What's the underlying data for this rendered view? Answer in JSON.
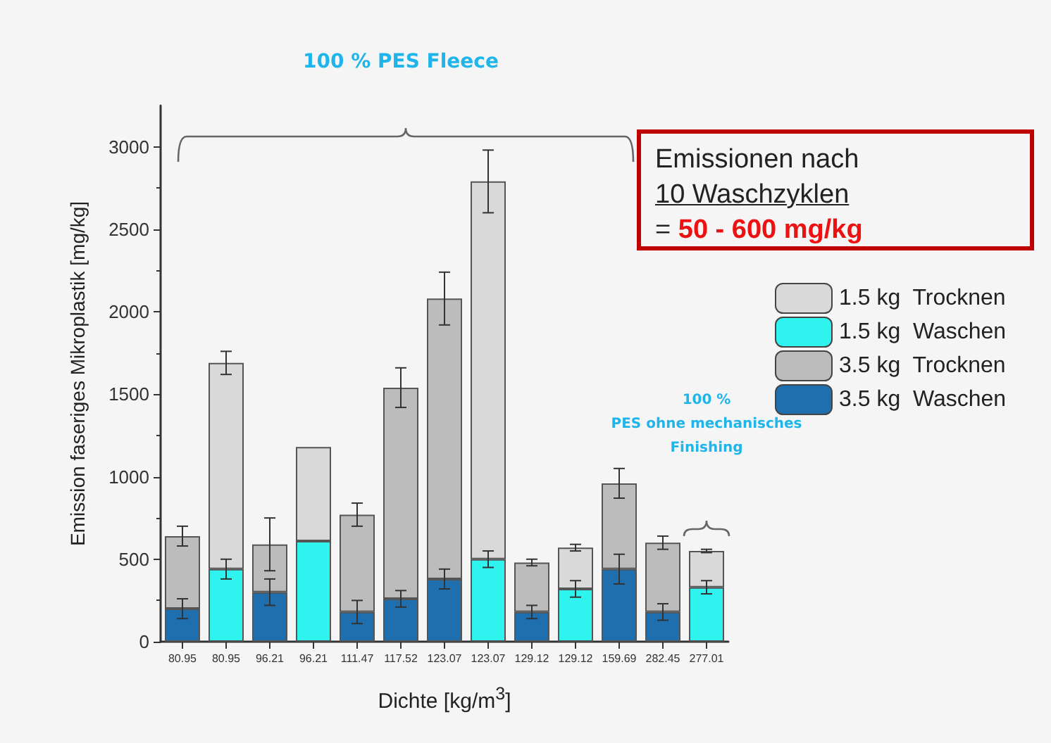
{
  "chart_data": {
    "type": "bar",
    "stacked": true,
    "xlabel": "Dichte [kg/m$^{3}$]",
    "ylabel": "Emission faseriges Mikroplastik [mg/kg]",
    "categories": [
      "80.95",
      "80.95",
      "96.21",
      "96.21",
      "111.47",
      "117.52",
      "123.07",
      "123.07",
      "129.12",
      "129.12",
      "159.69",
      "282.45",
      "277.01"
    ],
    "series": [
      {
        "name": "1.5 kg  Waschen",
        "color": "#2ef3ee",
        "values": [
          null,
          440,
          null,
          610,
          null,
          null,
          null,
          500,
          null,
          320,
          null,
          null,
          330
        ],
        "errors": [
          null,
          60,
          null,
          null,
          null,
          null,
          null,
          50,
          null,
          50,
          null,
          null,
          40
        ]
      },
      {
        "name": "3.5 kg  Waschen",
        "color": "#1f6fae",
        "values": [
          200,
          null,
          300,
          null,
          180,
          260,
          380,
          null,
          180,
          null,
          440,
          180,
          null
        ],
        "errors": [
          60,
          null,
          80,
          null,
          70,
          50,
          60,
          null,
          40,
          null,
          90,
          50,
          null
        ]
      },
      {
        "name": "1.5 kg  Trocknen",
        "color": "#d9d9d9",
        "values": [
          null,
          1250,
          null,
          570,
          null,
          null,
          null,
          2290,
          null,
          250,
          null,
          null,
          220
        ],
        "errors": [
          null,
          70,
          null,
          null,
          null,
          null,
          null,
          190,
          null,
          20,
          null,
          null,
          10
        ]
      },
      {
        "name": "3.5 kg  Trocknen",
        "color": "#bcbcbc",
        "values": [
          440,
          null,
          290,
          null,
          590,
          1280,
          1700,
          null,
          300,
          null,
          520,
          420,
          null
        ],
        "errors": [
          60,
          null,
          160,
          null,
          70,
          120,
          160,
          null,
          20,
          null,
          90,
          40,
          null
        ]
      }
    ],
    "ylim": [
      0,
      3250
    ],
    "yticks": [
      0,
      500,
      1000,
      1500,
      2000,
      2500,
      3000
    ],
    "grid": false,
    "legend": "right",
    "annotations": [
      "100 % PES Fleece",
      "100 %\nPES ohne mechanisches\nFinishing",
      "Emissionen nach\n10 Waschzyklen\n= 50 - 600 mg/kg"
    ]
  }
}
